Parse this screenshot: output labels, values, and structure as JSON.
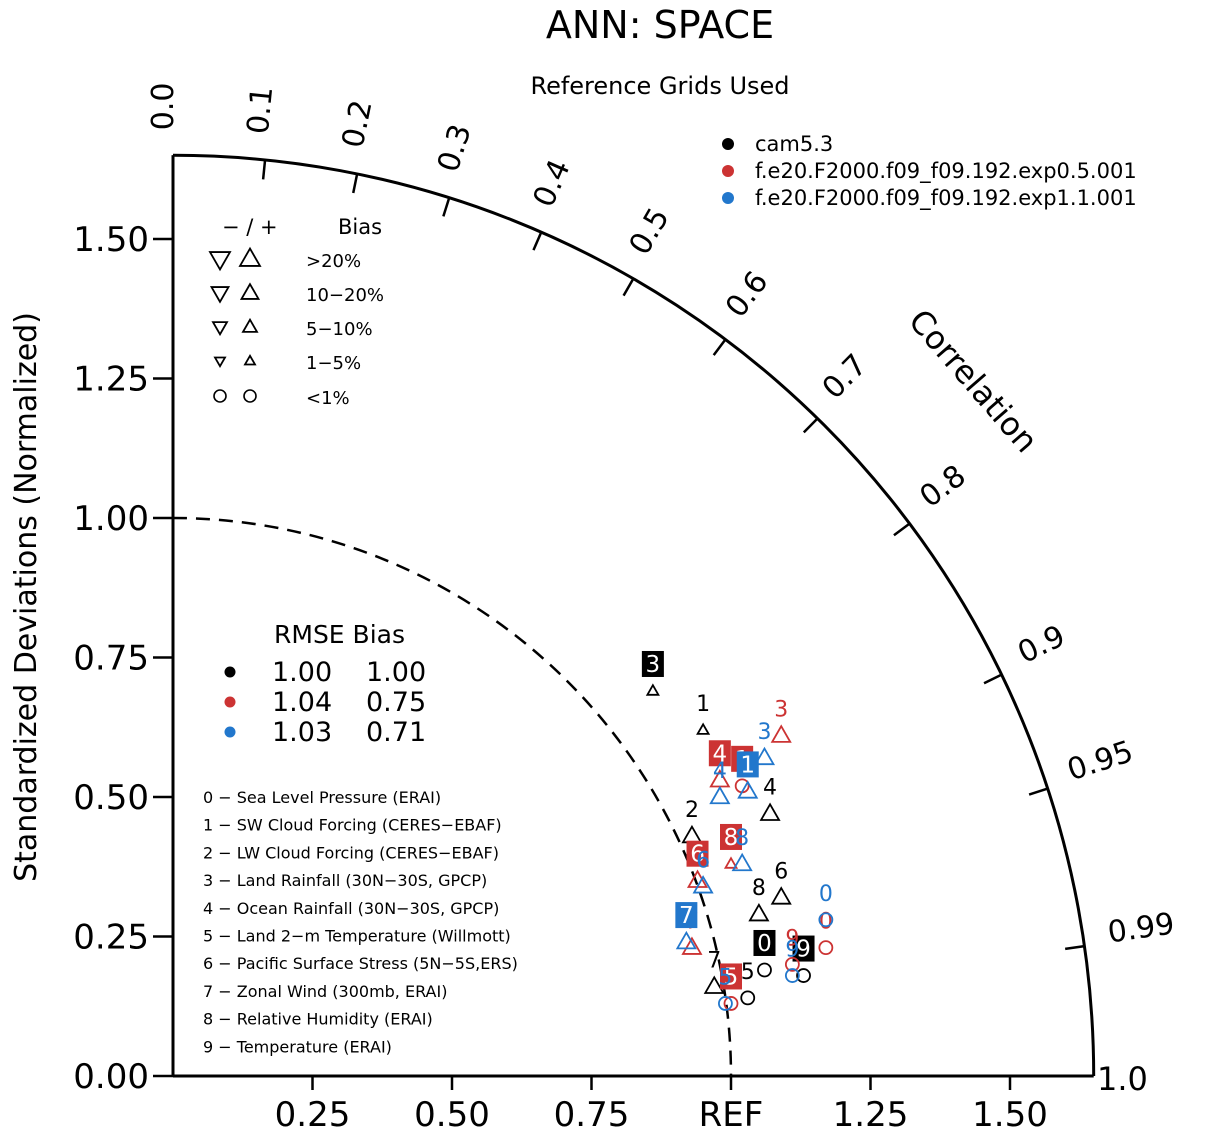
{
  "title": "ANN: SPACE",
  "subtitle": "Reference Grids Used",
  "y_axis_label": "Standardized Deviations (Normalized)",
  "correlation_label": "Correlation",
  "x_tick_labels": [
    "0.25",
    "0.50",
    "0.75",
    "REF",
    "1.25",
    "1.50"
  ],
  "y_tick_labels": [
    "0.00",
    "0.25",
    "0.50",
    "0.75",
    "1.00",
    "1.25",
    "1.50"
  ],
  "corner_label": "1.0",
  "correlation_tick_labels": [
    "0.0",
    "0.1",
    "0.2",
    "0.3",
    "0.4",
    "0.5",
    "0.6",
    "0.7",
    "0.8",
    "0.9",
    "0.95",
    "0.99"
  ],
  "bias_legend": {
    "header_sign": "− / +",
    "header_label": "Bias",
    "rows": [
      "&gt;20%",
      "10−20%",
      "5−10%",
      "1−5%",
      "&lt;1%"
    ]
  },
  "rmse_legend": {
    "header": "RMSE Bias",
    "rows": [
      {
        "rmse": "1.00",
        "bias": "1.00",
        "color": "#000000"
      },
      {
        "rmse": "1.04",
        "bias": "0.75",
        "color": "#cc3333"
      },
      {
        "rmse": "1.03",
        "bias": "0.71",
        "color": "#2277cc"
      }
    ]
  },
  "variable_list": [
    "0 − Sea Level Pressure (ERAI)",
    "1 − SW Cloud Forcing (CERES−EBAF)",
    "2 − LW Cloud Forcing (CERES−EBAF)",
    "3 − Land Rainfall (30N−30S, GPCP)",
    "4 − Ocean Rainfall (30N−30S, GPCP)",
    "5 − Land 2−m Temperature (Willmott)",
    "6 − Pacific Surface Stress (5N−5S,ERS)",
    "7 − Zonal Wind (300mb, ERAI)",
    "8 − Relative Humidity (ERAI)",
    "9 − Temperature (ERAI)"
  ],
  "chart_data": {
    "type": "scatter",
    "chart_kind": "taylor_diagram",
    "title": "ANN: SPACE",
    "subtitle": "Reference Grids Used",
    "xlabel": "",
    "ylabel": "Standardized Deviations (Normalized)",
    "angular_label": "Correlation",
    "xlim": [
      0,
      1.65
    ],
    "ylim": [
      0,
      1.65
    ],
    "reference_arc_radius": 1.0,
    "series": [
      {
        "name": "cam5.3",
        "color": "#000000",
        "points": [
          {
            "id": "0",
            "x": 1.06,
            "y": 0.19,
            "shape": "circle",
            "label_box": true
          },
          {
            "id": "1",
            "x": 0.95,
            "y": 0.62,
            "shape": "up-small",
            "label_box": false
          },
          {
            "id": "2",
            "x": 0.93,
            "y": 0.43,
            "shape": "up-large",
            "label_box": false
          },
          {
            "id": "3",
            "x": 0.86,
            "y": 0.69,
            "shape": "up-small",
            "label_box": true
          },
          {
            "id": "4",
            "x": 1.07,
            "y": 0.47,
            "shape": "up-large",
            "label_box": false
          },
          {
            "id": "5",
            "x": 1.03,
            "y": 0.14,
            "shape": "circle",
            "label_box": false
          },
          {
            "id": "6",
            "x": 1.09,
            "y": 0.32,
            "shape": "up-large",
            "label_box": false
          },
          {
            "id": "7",
            "x": 0.97,
            "y": 0.16,
            "shape": "up-large",
            "label_box": false
          },
          {
            "id": "8",
            "x": 1.05,
            "y": 0.29,
            "shape": "up-large",
            "label_box": false
          },
          {
            "id": "9",
            "x": 1.13,
            "y": 0.18,
            "shape": "circle",
            "label_box": true
          }
        ]
      },
      {
        "name": "f.e20.F2000.f09_f09.192.exp0.5.001",
        "color": "#cc3333",
        "points": [
          {
            "id": "0",
            "x": 1.17,
            "y": 0.23,
            "shape": "circle",
            "label_box": false
          },
          {
            "id": "1",
            "x": 1.02,
            "y": 0.52,
            "shape": "circle",
            "label_box": true
          },
          {
            "id": "3",
            "x": 1.09,
            "y": 0.61,
            "shape": "up-large",
            "label_box": false
          },
          {
            "id": "4",
            "x": 0.98,
            "y": 0.53,
            "shape": "up-large",
            "label_box": true
          },
          {
            "id": "5",
            "x": 1.0,
            "y": 0.13,
            "shape": "circle",
            "label_box": true
          },
          {
            "id": "6",
            "x": 0.94,
            "y": 0.35,
            "shape": "up-large",
            "label_box": true
          },
          {
            "id": "7",
            "x": 0.93,
            "y": 0.23,
            "shape": "up-large",
            "label_box": false
          },
          {
            "id": "8",
            "x": 1.0,
            "y": 0.38,
            "shape": "up-small",
            "label_box": true
          },
          {
            "id": "9",
            "x": 1.11,
            "y": 0.2,
            "shape": "circle",
            "label_box": false
          }
        ]
      },
      {
        "name": "f.e20.F2000.f09_f09.192.exp1.1.001",
        "color": "#2277cc",
        "points": [
          {
            "id": "0",
            "x": 1.17,
            "y": 0.28,
            "shape": "circle",
            "label_box": false
          },
          {
            "id": "1",
            "x": 1.03,
            "y": 0.51,
            "shape": "up-large",
            "label_box": true
          },
          {
            "id": "3",
            "x": 1.06,
            "y": 0.57,
            "shape": "up-large",
            "label_box": false
          },
          {
            "id": "4",
            "x": 0.98,
            "y": 0.5,
            "shape": "up-large",
            "label_box": false
          },
          {
            "id": "5",
            "x": 0.99,
            "y": 0.13,
            "shape": "circle",
            "label_box": false
          },
          {
            "id": "6",
            "x": 0.95,
            "y": 0.34,
            "shape": "up-large",
            "label_box": false
          },
          {
            "id": "7",
            "x": 0.92,
            "y": 0.24,
            "shape": "up-large",
            "label_box": true
          },
          {
            "id": "8",
            "x": 1.02,
            "y": 0.38,
            "shape": "up-large",
            "label_box": false
          },
          {
            "id": "9",
            "x": 1.11,
            "y": 0.18,
            "shape": "circle",
            "label_box": false
          }
        ]
      }
    ]
  }
}
